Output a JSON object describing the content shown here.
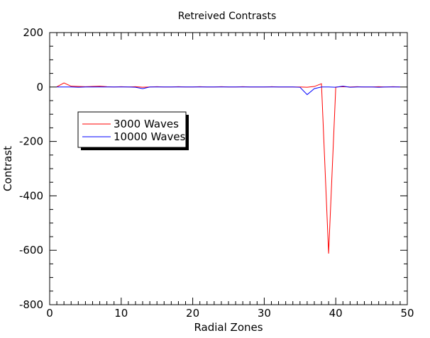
{
  "chart_data": {
    "type": "line",
    "title": "Retreived Contrasts",
    "xlabel": "Radial Zones",
    "ylabel": "Contrast",
    "xlim": [
      0,
      50
    ],
    "ylim": [
      -800,
      200
    ],
    "x_ticks": [
      0,
      10,
      20,
      30,
      40,
      50
    ],
    "y_ticks": [
      200,
      0,
      -200,
      -400,
      -600,
      -800
    ],
    "x_tick_labels": [
      "0",
      "10",
      "20",
      "30",
      "40",
      "50"
    ],
    "y_tick_labels": [
      "200",
      "0",
      "-200",
      "-400",
      "-600",
      "-800"
    ],
    "grid": false,
    "legend_placement": "upper-left",
    "series": [
      {
        "name": "3000 Waves",
        "color": "#ff0000",
        "x": [
          1,
          2,
          3,
          4,
          5,
          6,
          7,
          8,
          9,
          10,
          11,
          12,
          13,
          14,
          15,
          16,
          17,
          18,
          19,
          20,
          21,
          22,
          23,
          24,
          25,
          26,
          27,
          28,
          29,
          30,
          31,
          32,
          33,
          34,
          35,
          36,
          37,
          38,
          39,
          40,
          41,
          42,
          43,
          44,
          45,
          46,
          47,
          48,
          49
        ],
        "values": [
          1,
          15,
          3,
          2,
          1,
          2,
          3,
          1,
          0,
          1,
          0,
          1,
          -1,
          0,
          1,
          0,
          0,
          1,
          0,
          0,
          1,
          0,
          0,
          1,
          0,
          0,
          1,
          0,
          0,
          0,
          1,
          0,
          0,
          0,
          0,
          -1,
          2,
          12,
          -612,
          0,
          1,
          0,
          1,
          0,
          0,
          1,
          0,
          1,
          0
        ]
      },
      {
        "name": "10000 Waves",
        "color": "#0000ff",
        "x": [
          1,
          2,
          3,
          4,
          5,
          6,
          7,
          8,
          9,
          10,
          11,
          12,
          13,
          14,
          15,
          16,
          17,
          18,
          19,
          20,
          21,
          22,
          23,
          24,
          25,
          26,
          27,
          28,
          29,
          30,
          31,
          32,
          33,
          34,
          35,
          36,
          37,
          38,
          39,
          40,
          41,
          42,
          43,
          44,
          45,
          46,
          47,
          48,
          49
        ],
        "values": [
          0,
          0,
          0,
          -1,
          0,
          0,
          0,
          0,
          0,
          0,
          0,
          -1,
          -6,
          0,
          0,
          0,
          0,
          0,
          0,
          0,
          0,
          0,
          0,
          0,
          0,
          0,
          0,
          0,
          0,
          0,
          0,
          0,
          0,
          0,
          -1,
          -28,
          -6,
          0,
          0,
          -1,
          3,
          -1,
          0,
          0,
          0,
          -1,
          0,
          0,
          0
        ]
      }
    ]
  }
}
